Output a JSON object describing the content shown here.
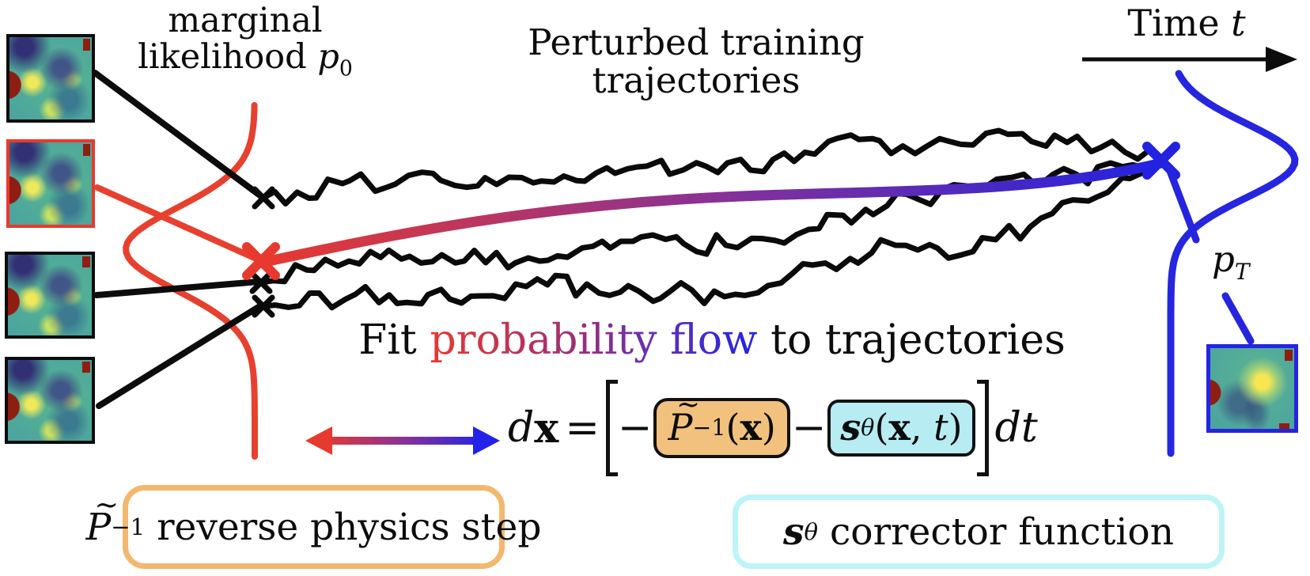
{
  "figure_title": "probability flow diffusion with physics operator (paper figure)",
  "colors": {
    "red": "#e8392f",
    "blue": "#2525e0",
    "purple_mid": "#8a3295",
    "black": "#0c0c0c",
    "physics_box_fill": "#f2c17d",
    "physics_box_border": "#f3b76d",
    "corrector_box_fill": "#b6ecf2",
    "corrector_box_border": "#bdf4f6"
  },
  "labels": {
    "marginal_line1": "marginal",
    "marginal_line2": "likelihood ",
    "p0_symbol": "p",
    "p0_sub": "0",
    "perturbed_line1": "Perturbed training",
    "perturbed_line2": "trajectories",
    "time_word": "Time ",
    "time_var": "t",
    "pT_symbol": "p",
    "pT_sub": "T",
    "fit_prefix": "Fit",
    "fit_gradient_phrase": "probability flow",
    "fit_suffix": "to trajectories"
  },
  "equation": {
    "d": "d",
    "x_bold": "x",
    "equals": "=",
    "minus1": "−",
    "physics_term": {
      "symbol": "P",
      "tilde": "~",
      "sup": "−1",
      "open": "(",
      "arg": "x",
      "close": ")"
    },
    "minus2": "−",
    "corrector_term": {
      "symbol": "s",
      "sub": "θ",
      "open": "(",
      "arg": "x",
      "comma": ", ",
      "t": "t",
      "close": ")"
    },
    "dt_d": "d",
    "dt_t": "t"
  },
  "legend": {
    "physics": {
      "symbol": "P",
      "tilde": "~",
      "sup": "−1",
      "label": " reverse physics step"
    },
    "corrector": {
      "symbol": "s",
      "sub": "θ",
      "label": " corrector function"
    }
  },
  "thumbnails": {
    "left_samples": [
      {
        "name": "initial-state-sample-1",
        "border": "black"
      },
      {
        "name": "initial-state-sample-2",
        "border": "red"
      },
      {
        "name": "initial-state-sample-3",
        "border": "black"
      },
      {
        "name": "initial-state-sample-4",
        "border": "black"
      }
    ],
    "end_state": {
      "name": "terminal-state-sample",
      "border": "blue"
    }
  }
}
